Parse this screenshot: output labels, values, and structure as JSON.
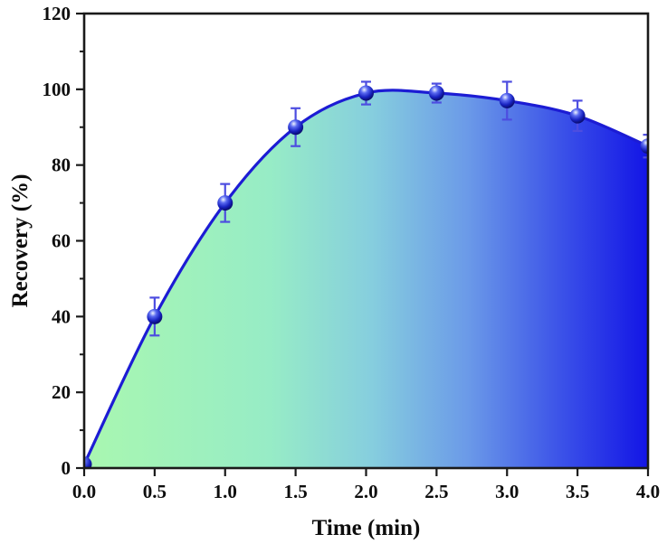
{
  "chart_data": {
    "type": "area",
    "title": "",
    "xlabel": "Time (min)",
    "ylabel": "Recovery (%)",
    "x": [
      0,
      0.5,
      1,
      1.5,
      2,
      2.5,
      3,
      3.5,
      4
    ],
    "series": [
      {
        "name": "Recovery",
        "values": [
          1,
          40,
          70,
          90,
          99,
          99,
          97,
          93,
          85
        ],
        "errors": [
          0,
          5,
          5,
          5,
          3,
          2.5,
          5,
          4,
          3
        ]
      }
    ],
    "xlim": [
      0,
      4
    ],
    "ylim": [
      0,
      120
    ],
    "x_ticks": {
      "values": [
        0,
        0.5,
        1,
        1.5,
        2,
        2.5,
        3,
        3.5,
        4
      ],
      "labels": [
        "0.0",
        "0.5",
        "1.0",
        "1.5",
        "2.0",
        "2.5",
        "3.0",
        "3.5",
        "4.0"
      ]
    },
    "y_ticks": {
      "values": [
        0,
        20,
        40,
        60,
        80,
        100,
        120
      ],
      "labels": [
        "0",
        "20",
        "40",
        "60",
        "80",
        "100",
        "120"
      ],
      "minor_step": 10
    },
    "grid": false,
    "legend_position": "none",
    "style": {
      "line_color": "#1c1cd4",
      "error_bar_color": "#4d4de0",
      "axis_color": "#1a1a1a",
      "background": "#ffffff",
      "marker_gradient": [
        "#eef4ff",
        "#5a6af0",
        "#1822c0",
        "#03034e"
      ],
      "area_gradient": [
        {
          "offset": 0.0,
          "color": "#a9f7b0"
        },
        {
          "offset": 0.33,
          "color": "#97ecc6"
        },
        {
          "offset": 0.51,
          "color": "#86cede"
        },
        {
          "offset": 0.68,
          "color": "#6b9ae8"
        },
        {
          "offset": 0.85,
          "color": "#3a50e8"
        },
        {
          "offset": 1.0,
          "color": "#1315e6"
        }
      ]
    }
  }
}
